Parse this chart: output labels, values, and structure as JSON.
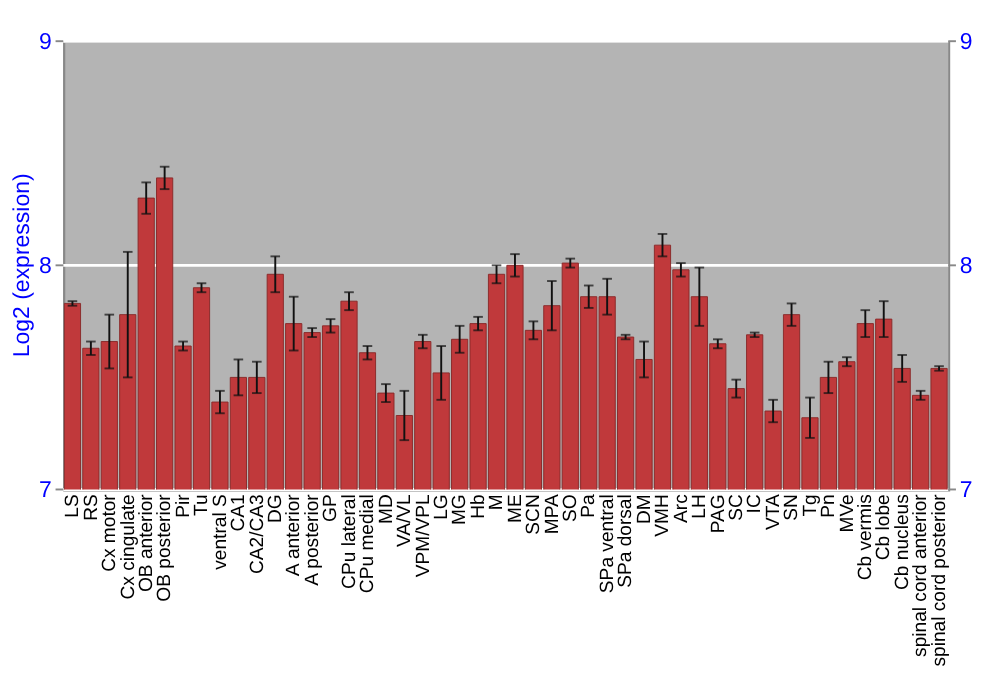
{
  "chart_data": {
    "type": "bar",
    "ylabel": "Log2 (expression)",
    "categories": [
      "LS",
      "RS",
      "Cx motor",
      "Cx cingulate",
      "OB anterior",
      "OB posterior",
      "Pir",
      "Tu",
      "ventral S",
      "CA1",
      "CA2/CA3",
      "DG",
      "A anterior",
      "A posterior",
      "GP",
      "CPu lateral",
      "CPu medial",
      "MD",
      "VA/VL",
      "VPM/VPL",
      "LG",
      "MG",
      "Hb",
      "M",
      "ME",
      "SCN",
      "MPA",
      "SO",
      "Pa",
      "SPa ventral",
      "SPa dorsal",
      "DM",
      "VMH",
      "Arc",
      "LH",
      "PAG",
      "SC",
      "IC",
      "VTA",
      "SN",
      "Tg",
      "Pn",
      "MVe",
      "Cb vermis",
      "Cb lobe",
      "Cb nucleus",
      "spinal cord anterior",
      "spinal cord posterior"
    ],
    "series": [
      {
        "color": "#c0393b",
        "values": [
          7.83,
          7.63,
          7.66,
          7.78,
          8.3,
          8.39,
          7.64,
          7.9,
          7.39,
          7.5,
          7.5,
          7.96,
          7.74,
          7.7,
          7.73,
          7.84,
          7.61,
          7.43,
          7.33,
          7.66,
          7.52,
          7.67,
          7.74,
          7.96,
          8.0,
          7.71,
          7.82,
          8.01,
          7.86,
          7.86,
          7.68,
          7.58,
          8.09,
          7.98,
          7.86,
          7.65,
          7.45,
          7.69,
          7.35,
          7.78,
          7.32,
          7.5,
          7.57,
          7.74,
          7.76,
          7.54,
          7.42,
          7.54
        ],
        "errors": [
          0.01,
          0.03,
          0.12,
          0.28,
          0.07,
          0.05,
          0.02,
          0.02,
          0.05,
          0.08,
          0.07,
          0.08,
          0.12,
          0.02,
          0.03,
          0.04,
          0.03,
          0.04,
          0.11,
          0.03,
          0.12,
          0.06,
          0.03,
          0.04,
          0.05,
          0.04,
          0.11,
          0.02,
          0.05,
          0.08,
          0.01,
          0.08,
          0.05,
          0.03,
          0.13,
          0.02,
          0.04,
          0.01,
          0.05,
          0.05,
          0.09,
          0.07,
          0.02,
          0.06,
          0.08,
          0.06,
          0.02,
          0.01
        ]
      }
    ],
    "ylim": [
      7,
      9
    ],
    "yticks": [
      7,
      8,
      9
    ],
    "y2lim": [
      7,
      9
    ],
    "y2ticks": [
      7,
      8,
      9
    ],
    "grid": "y"
  }
}
